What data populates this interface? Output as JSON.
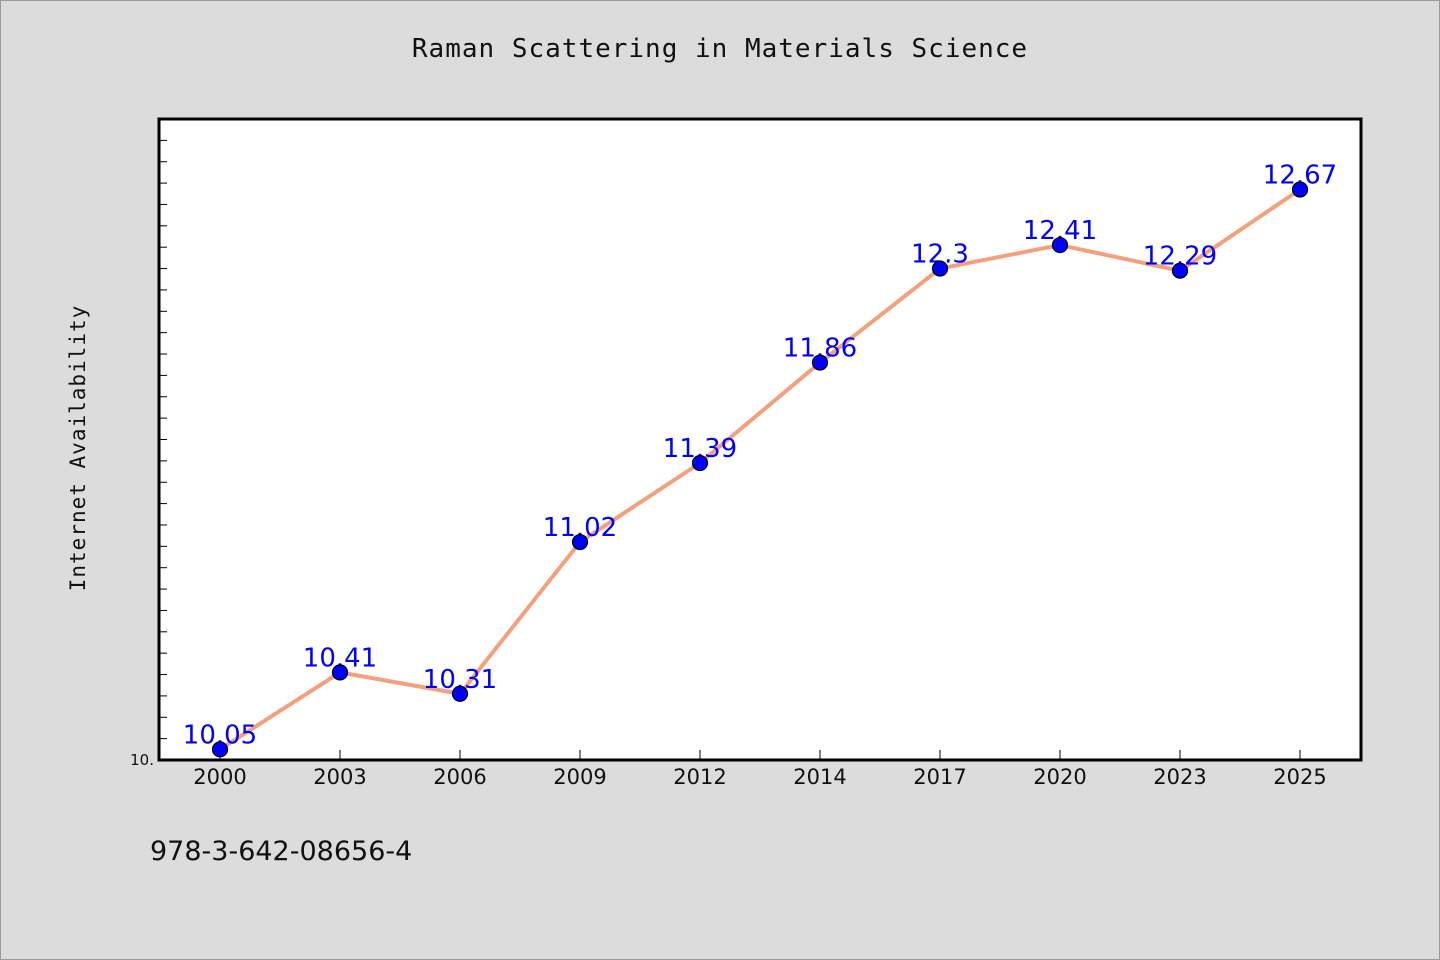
{
  "chart_data": {
    "type": "line",
    "title": "Raman Scattering in Materials Science",
    "xlabel": "",
    "ylabel": "Internet Availability",
    "categories": [
      "2000",
      "2003",
      "2006",
      "2009",
      "2012",
      "2014",
      "2017",
      "2020",
      "2023",
      "2025"
    ],
    "series": [
      {
        "values": [
          10.05,
          10.41,
          10.31,
          11.02,
          11.39,
          11.86,
          12.3,
          12.41,
          12.29,
          12.67
        ],
        "labels": [
          "10.05",
          "10.41",
          "10.31",
          "11.02",
          "11.39",
          "11.86",
          "12.3",
          "12.41",
          "12.29",
          "12.67"
        ],
        "line_color": "#f4a07c",
        "marker_color": "#0000ff",
        "label_color": "#0000ff"
      }
    ],
    "ylim": [
      10.0,
      13.0
    ],
    "y_min_label": "10.",
    "grid": false,
    "legend": "none"
  },
  "footer": {
    "identifier": "978-3-642-08656-4"
  },
  "colors": {
    "background": "#dcdcdc",
    "plot_background": "#ffffff",
    "axis": "#000000"
  }
}
